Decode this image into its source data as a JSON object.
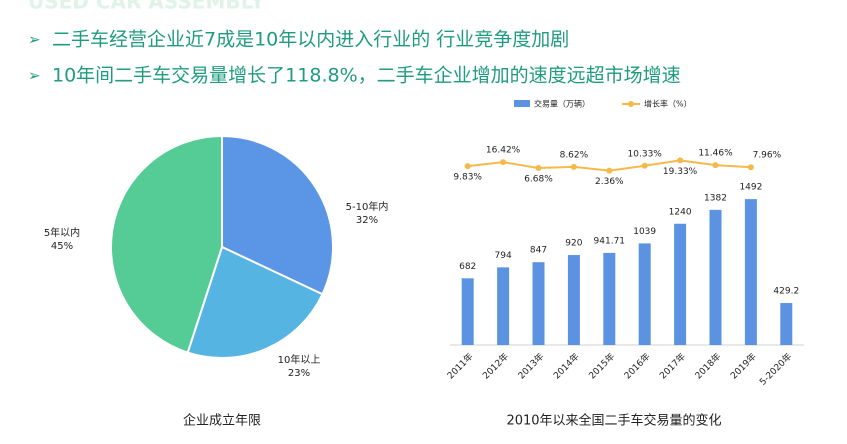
{
  "header": {
    "title": "USED CAR ASSEMBLY",
    "bullets": [
      "二手车经营企业近7成是10年以内进入行业的 行业竞争度加剧",
      "10年间二手车交易量增长了118.8%，二手车企业增加的速度远超市场增速"
    ]
  },
  "chart_data": [
    {
      "type": "pie",
      "title": "企业成立年限",
      "categories": [
        "5-10年内",
        "10年以上",
        "5年以内"
      ],
      "values": [
        32,
        23,
        45
      ],
      "value_labels": [
        "32%",
        "23%",
        "45%"
      ],
      "colors": [
        "#5b95e5",
        "#56b4e3",
        "#55cb95"
      ]
    },
    {
      "type": "bar",
      "title": "2010年以来全国二手车交易量的变化",
      "categories": [
        "2011年",
        "2012年",
        "2013年",
        "2014年",
        "2015年",
        "2016年",
        "2017年",
        "2018年",
        "2019年",
        "5-2020年"
      ],
      "series": [
        {
          "name": "交易量（万辆）",
          "color": "#5b93e2",
          "type": "bar",
          "values": [
            682,
            794,
            847,
            920,
            941.71,
            1039,
            1240,
            1382,
            1492,
            429.2
          ]
        },
        {
          "name": "增长率（%）",
          "color": "#f5b94a",
          "type": "line",
          "axis": "y2",
          "values": [
            9.83,
            16.42,
            6.68,
            8.62,
            2.36,
            10.33,
            19.33,
            11.46,
            7.96,
            null
          ],
          "value_labels": [
            "9.83%",
            "16.42%",
            "6.68%",
            "8.62%",
            "2.36%",
            "10.33%",
            "19.33%",
            "11.46%",
            "7.96%",
            null
          ]
        }
      ],
      "ylim": [
        0,
        1800
      ],
      "y2lim": [
        -30,
        45
      ],
      "legend": "top"
    }
  ]
}
